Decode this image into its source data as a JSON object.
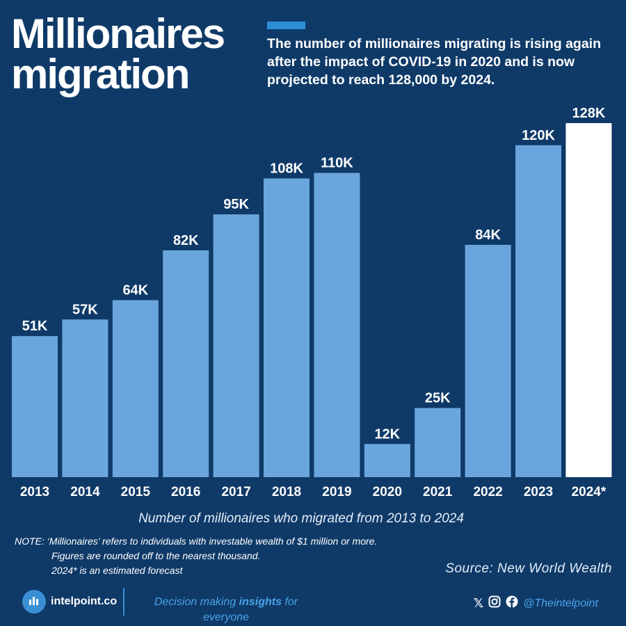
{
  "header": {
    "title": "Millionaires migration",
    "subtitle": "The number of millionaires migrating is rising again after the impact of COVID-19 in 2020 and is now projected to reach 128,000 by 2024."
  },
  "chart_data": {
    "type": "bar",
    "title": "Millionaires migration",
    "categories": [
      "2013",
      "2014",
      "2015",
      "2016",
      "2017",
      "2018",
      "2019",
      "2020",
      "2021",
      "2022",
      "2023",
      "2024*"
    ],
    "values": [
      51000,
      57000,
      64000,
      82000,
      95000,
      108000,
      110000,
      12000,
      25000,
      84000,
      120000,
      128000
    ],
    "data_labels": [
      "51K",
      "57K",
      "64K",
      "82K",
      "95K",
      "108K",
      "110K",
      "12K",
      "25K",
      "84K",
      "120K",
      "128K"
    ],
    "highlight_index": 11,
    "xlabel": "Number of millionaires who migrated from 2013 to 2024",
    "ylabel": "",
    "ylim": [
      0,
      128000
    ],
    "grid": false,
    "colors": {
      "bar": "#6aa6dd",
      "highlight": "#ffffff",
      "background": "#0f3a68"
    }
  },
  "notes": {
    "line1": "NOTE: ‘Millionaires’ refers to individuals with investable wealth of $1 million or more.",
    "line2": "Figures are rounded off to the nearest thousand.",
    "line3": "2024* is an estimated forecast"
  },
  "source": "Source: New World Wealth",
  "footer": {
    "brand": "intelpoint.co",
    "tagline_prefix": "Decision making ",
    "tagline_bold": "insights",
    "tagline_suffix": " for everyone",
    "social_handle": "@Theintelpoint"
  }
}
